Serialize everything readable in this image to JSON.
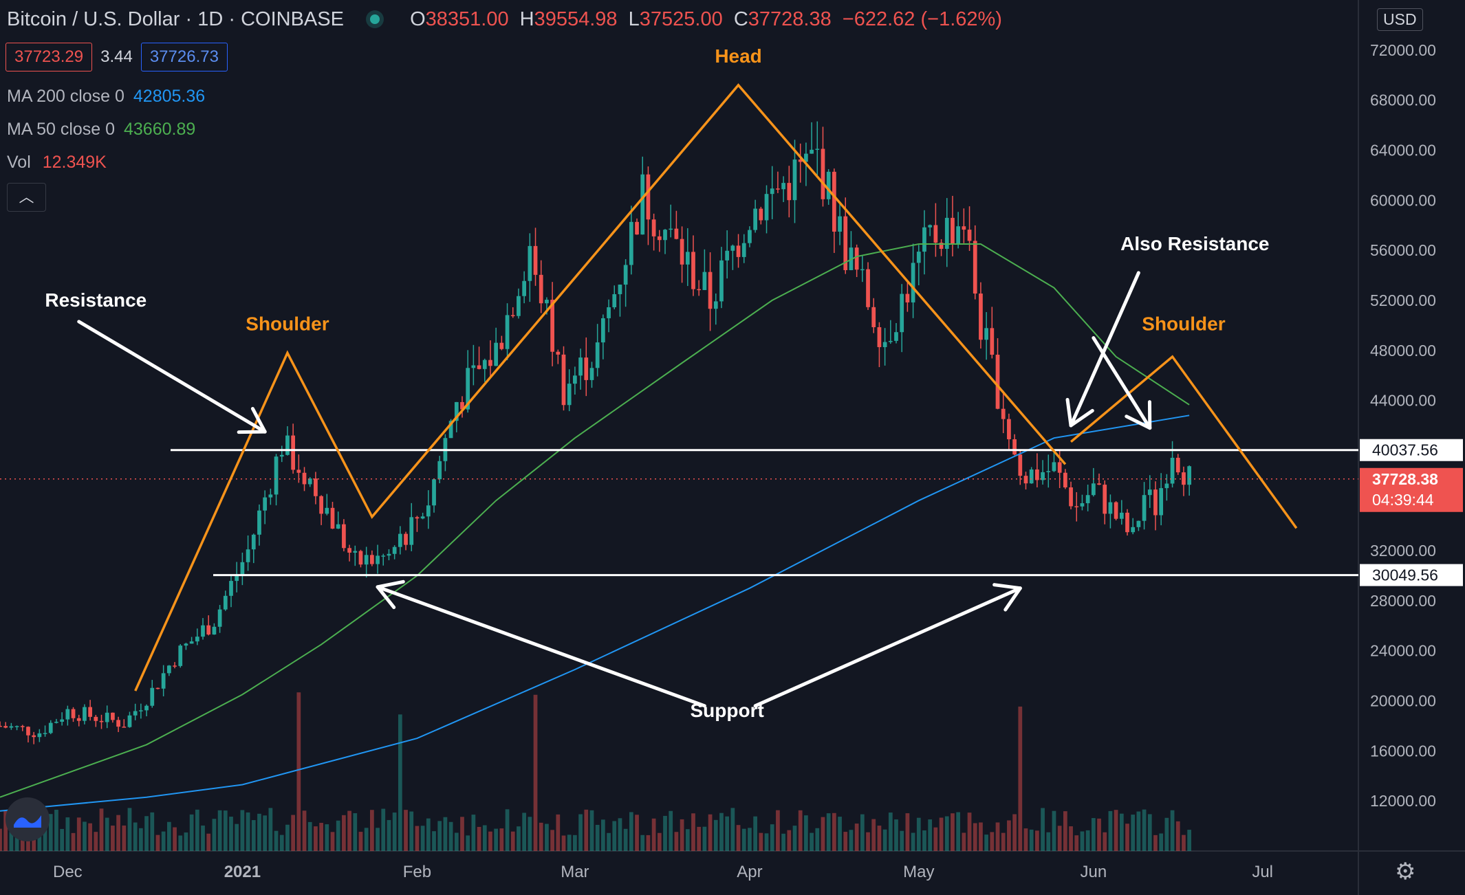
{
  "header": {
    "symbol": "Bitcoin / U.S. Dollar",
    "interval": "1D",
    "exchange": "COINBASE",
    "open_label": "O",
    "open": "38351.00",
    "high_label": "H",
    "high": "39554.98",
    "low_label": "L",
    "low": "37525.00",
    "close_label": "C",
    "close": "37728.38",
    "change": "−622.62 (−1.62%)",
    "bid": "37723.29",
    "spread": "3.44",
    "ask": "37726.73",
    "currency": "USD"
  },
  "indicators": {
    "ma200_name": "MA 200 close 0",
    "ma200_value": "42805.36",
    "ma50_name": "MA 50 close 0",
    "ma50_value": "43660.89",
    "vol_name": "Vol",
    "vol_value": "12.349K"
  },
  "colors": {
    "up": "#26a69a",
    "down": "#ef5350",
    "ma200": "#2196f3",
    "ma50": "#4caf50",
    "pattern": "#f7931a",
    "annotation": "#ffffff",
    "background": "#131722"
  },
  "icons": {
    "collapse": "chevron-up-icon",
    "settings": "gear-icon",
    "logo": "tradingview-logo-icon"
  },
  "chart_data": {
    "type": "candlestick",
    "ylim": [
      8000,
      76000
    ],
    "yticks": [
      "12000.00",
      "16000.00",
      "20000.00",
      "24000.00",
      "28000.00",
      "32000.00",
      "36000.00",
      "40000.00",
      "44000.00",
      "48000.00",
      "52000.00",
      "56000.00",
      "60000.00",
      "64000.00",
      "68000.00",
      "72000.00"
    ],
    "xlim": [
      "2020-11-19",
      "2021-07-18"
    ],
    "xticks": [
      {
        "date": "2020-12-01",
        "label": "Dec"
      },
      {
        "date": "2021-01-01",
        "label": "2021"
      },
      {
        "date": "2021-02-01",
        "label": "Feb"
      },
      {
        "date": "2021-03-01",
        "label": "Mar"
      },
      {
        "date": "2021-04-01",
        "label": "Apr"
      },
      {
        "date": "2021-05-01",
        "label": "May"
      },
      {
        "date": "2021-06-01",
        "label": "Jun"
      },
      {
        "date": "2021-07-01",
        "label": "Jul"
      }
    ],
    "price_path": [
      [
        "2020-11-19",
        18000
      ],
      [
        "2020-11-26",
        17500
      ],
      [
        "2020-12-01",
        19200
      ],
      [
        "2020-12-11",
        18200
      ],
      [
        "2020-12-16",
        20800
      ],
      [
        "2020-12-20",
        23500
      ],
      [
        "2020-12-27",
        26500
      ],
      [
        "2021-01-02",
        32000
      ],
      [
        "2021-01-08",
        40500
      ],
      [
        "2021-01-14",
        37000
      ],
      [
        "2021-01-21",
        31000
      ],
      [
        "2021-01-27",
        31500
      ],
      [
        "2021-02-03",
        36000
      ],
      [
        "2021-02-08",
        44000
      ],
      [
        "2021-02-15",
        48000
      ],
      [
        "2021-02-21",
        56500
      ],
      [
        "2021-02-27",
        45000
      ],
      [
        "2021-03-05",
        48000
      ],
      [
        "2021-03-13",
        60500
      ],
      [
        "2021-03-25",
        52000
      ],
      [
        "2021-04-01",
        59000
      ],
      [
        "2021-04-13",
        63500
      ],
      [
        "2021-04-18",
        56000
      ],
      [
        "2021-04-25",
        49000
      ],
      [
        "2021-05-03",
        57000
      ],
      [
        "2021-05-09",
        58500
      ],
      [
        "2021-05-12",
        50000
      ],
      [
        "2021-05-19",
        38000
      ],
      [
        "2021-05-25",
        38500
      ],
      [
        "2021-05-29",
        35500
      ],
      [
        "2021-06-01",
        37000
      ],
      [
        "2021-06-08",
        33000
      ],
      [
        "2021-06-10",
        36500
      ],
      [
        "2021-06-12",
        35500
      ],
      [
        "2021-06-15",
        40300
      ],
      [
        "2021-06-18",
        37728
      ]
    ],
    "ma50": [
      [
        "2020-11-19",
        12300
      ],
      [
        "2020-12-15",
        16500
      ],
      [
        "2021-01-01",
        20500
      ],
      [
        "2021-01-15",
        24500
      ],
      [
        "2021-02-01",
        30000
      ],
      [
        "2021-02-15",
        36000
      ],
      [
        "2021-03-01",
        41000
      ],
      [
        "2021-03-20",
        47000
      ],
      [
        "2021-04-05",
        52000
      ],
      [
        "2021-04-20",
        55500
      ],
      [
        "2021-05-01",
        56500
      ],
      [
        "2021-05-12",
        56500
      ],
      [
        "2021-05-25",
        53000
      ],
      [
        "2021-06-05",
        47500
      ],
      [
        "2021-06-18",
        43661
      ]
    ],
    "ma200": [
      [
        "2020-11-19",
        11200
      ],
      [
        "2020-12-15",
        12300
      ],
      [
        "2021-01-01",
        13300
      ],
      [
        "2021-02-01",
        17000
      ],
      [
        "2021-03-01",
        22500
      ],
      [
        "2021-04-01",
        29000
      ],
      [
        "2021-05-01",
        36000
      ],
      [
        "2021-05-25",
        41000
      ],
      [
        "2021-06-18",
        42805
      ]
    ],
    "volume_peak_dates": [
      "2021-01-11",
      "2021-01-29",
      "2021-02-22",
      "2021-05-19"
    ],
    "horizontal_levels": [
      {
        "price": 40037.56,
        "label": "40037.56"
      },
      {
        "price": 30049.56,
        "label": "30049.56"
      }
    ],
    "last_price": {
      "price": 37728.38,
      "label": "37728.38",
      "countdown": "04:39:44"
    },
    "pattern_line": [
      [
        "2020-12-13",
        20800
      ],
      [
        "2021-01-09",
        47800
      ],
      [
        "2021-01-24",
        34700
      ],
      [
        "2021-03-30",
        69200
      ],
      [
        "2021-05-27",
        38900
      ],
      [
        "2021-06-15",
        47500
      ],
      [
        "2021-07-07",
        33800
      ]
    ],
    "annotations": [
      {
        "text": "Head",
        "date": "2021-03-30",
        "price": 71000,
        "color": "#f7931a"
      },
      {
        "text": "Shoulder",
        "date": "2021-01-09",
        "price": 49600,
        "color": "#f7931a"
      },
      {
        "text": "Shoulder",
        "date": "2021-06-17",
        "price": 49600,
        "color": "#f7931a"
      },
      {
        "text": "Resistance",
        "date": "2020-12-06",
        "price": 51500,
        "color": "#ffffff"
      },
      {
        "text": "Also Resistance",
        "date": "2021-06-19",
        "price": 56000,
        "color": "#ffffff"
      },
      {
        "text": "Support",
        "date": "2021-03-28",
        "price": 18700,
        "color": "#ffffff"
      }
    ],
    "arrows": [
      {
        "from": [
          "2020-12-03",
          50300
        ],
        "to": [
          "2021-01-05",
          41500
        ]
      },
      {
        "from": [
          "2021-06-09",
          54200
        ],
        "to": [
          "2021-05-28",
          42000
        ]
      },
      {
        "from": [
          "2021-06-01",
          49000
        ],
        "to": [
          "2021-06-11",
          41800
        ]
      },
      {
        "from": [
          "2021-03-24",
          19600
        ],
        "to": [
          "2021-01-25",
          29100
        ]
      },
      {
        "from": [
          "2021-04-02",
          19600
        ],
        "to": [
          "2021-05-19",
          29000
        ]
      }
    ]
  }
}
